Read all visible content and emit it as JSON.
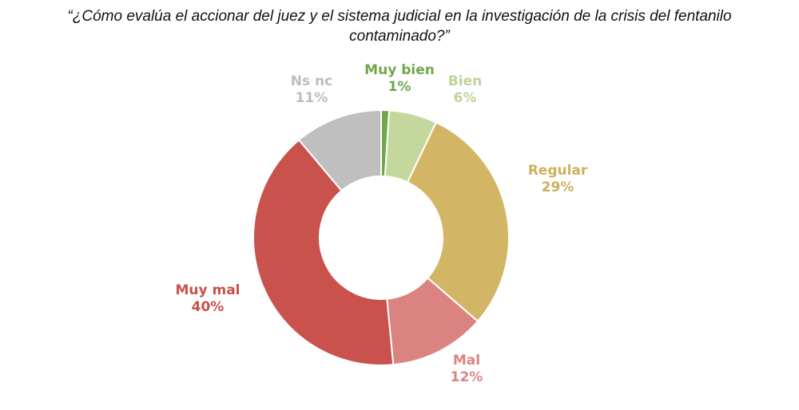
{
  "chart_data": {
    "type": "pie",
    "variant": "donut",
    "title": "“¿Cómo evalúa el accionar del juez y el sistema judicial en la investigación de la crisis del fentanilo contaminado?”",
    "title_line1": "“¿Cómo evalúa el accionar del juez y el sistema judicial en la investigación de la crisis del fentanilo",
    "title_line2": "contaminado?”",
    "start": "top",
    "direction": "clockwise",
    "slices": [
      {
        "label": "Muy bien",
        "value": 1,
        "display": "1%",
        "color": "#6FA84A",
        "text_color": "#6FA84A"
      },
      {
        "label": "Bien",
        "value": 6,
        "display": "6%",
        "color": "#C4D89E",
        "text_color": "#BDD39A"
      },
      {
        "label": "Regular",
        "value": 29,
        "display": "29%",
        "color": "#D3B665",
        "text_color": "#CDB060"
      },
      {
        "label": "Mal",
        "value": 12,
        "display": "12%",
        "color": "#DB8380",
        "text_color": "#D98580"
      },
      {
        "label": "Muy mal",
        "value": 40,
        "display": "40%",
        "color": "#CA524D",
        "text_color": "#C9504B"
      },
      {
        "label": "Ns nc",
        "value": 11,
        "display": "11%",
        "color": "#BFBFBF",
        "text_color": "#BDBDBD"
      }
    ]
  }
}
